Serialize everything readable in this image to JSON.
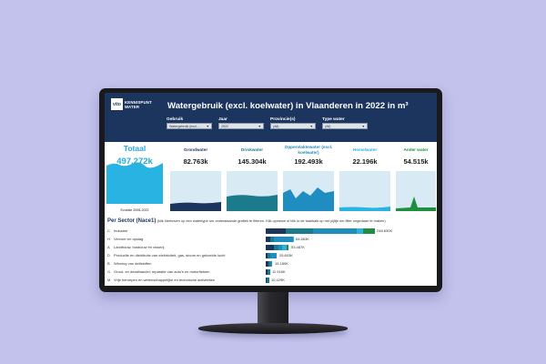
{
  "header": {
    "logo_mark": "vito",
    "logo_line1": "KENNISPUNT",
    "logo_line2": "WATER",
    "title": "Watergebruik (excl. koelwater) in Vlaanderen in 2022 in m³"
  },
  "filters": [
    {
      "label": "Gebruik",
      "value": "Watergebruik (excl...."
    },
    {
      "label": "Jaar",
      "value": "2022"
    },
    {
      "label": "Provincie(s)",
      "value": "(All)"
    },
    {
      "label": "Type water",
      "value": "(All)"
    }
  ],
  "total": {
    "title": "Totaal",
    "value": "497.272k",
    "note": "Evolutie 2008-2022"
  },
  "tiles": [
    {
      "title": "Grondwater",
      "value": "82.763k",
      "color": "#1b355e"
    },
    {
      "title": "Drinkwater",
      "value": "145.304k",
      "color": "#1b7a8c"
    },
    {
      "title": "Oppervlaktewater (excl. koelwater)",
      "value": "192.493k",
      "color": "#1f8dbf"
    },
    {
      "title": "Hemelwater",
      "value": "22.196k",
      "color": "#28b3e3"
    },
    {
      "title": "Ander water",
      "value": "54.515k",
      "color": "#1e8f3e"
    }
  ],
  "sector": {
    "title": "Per Sector (Nace1)",
    "hint": "(klik hierboven op een watertype om onderstaande grafiek te filteren. Klik opnieuw of klik in de taakbalk op het pijltje om filter ongedaan te maken)",
    "rows": [
      {
        "code": "C",
        "label": "Industrie",
        "value": "248.630K"
      },
      {
        "code": "H",
        "label": "Vervoer en opslag",
        "value": "64.663K"
      },
      {
        "code": "A",
        "label": "Landbouw, bosbouw en visserij",
        "value": "53.487K"
      },
      {
        "code": "D",
        "label": "Productie en distributie van elektriciteit, gas, stoom en gekoelde lucht",
        "value": "25.603K"
      },
      {
        "code": "B",
        "label": "Winning van delfstoffen",
        "value": "15.180K"
      },
      {
        "code": "G",
        "label": "Groot- en detailhandel; reparatie van auto's en motorfietsen",
        "value": "11.916K"
      },
      {
        "code": "M",
        "label": "Vrije beroepen en wetenschappelijke en technische activiteiten",
        "value": "10.429K"
      }
    ]
  },
  "colors": {
    "header_bg": "#1b355e",
    "total_accent": "#28a8d8",
    "grondwater": "#1b355e",
    "drinkwater": "#1b7a8c",
    "oppervlaktewater": "#1f8dbf",
    "hemelwater": "#28b3e3",
    "ander_water": "#1e8f3e"
  }
}
